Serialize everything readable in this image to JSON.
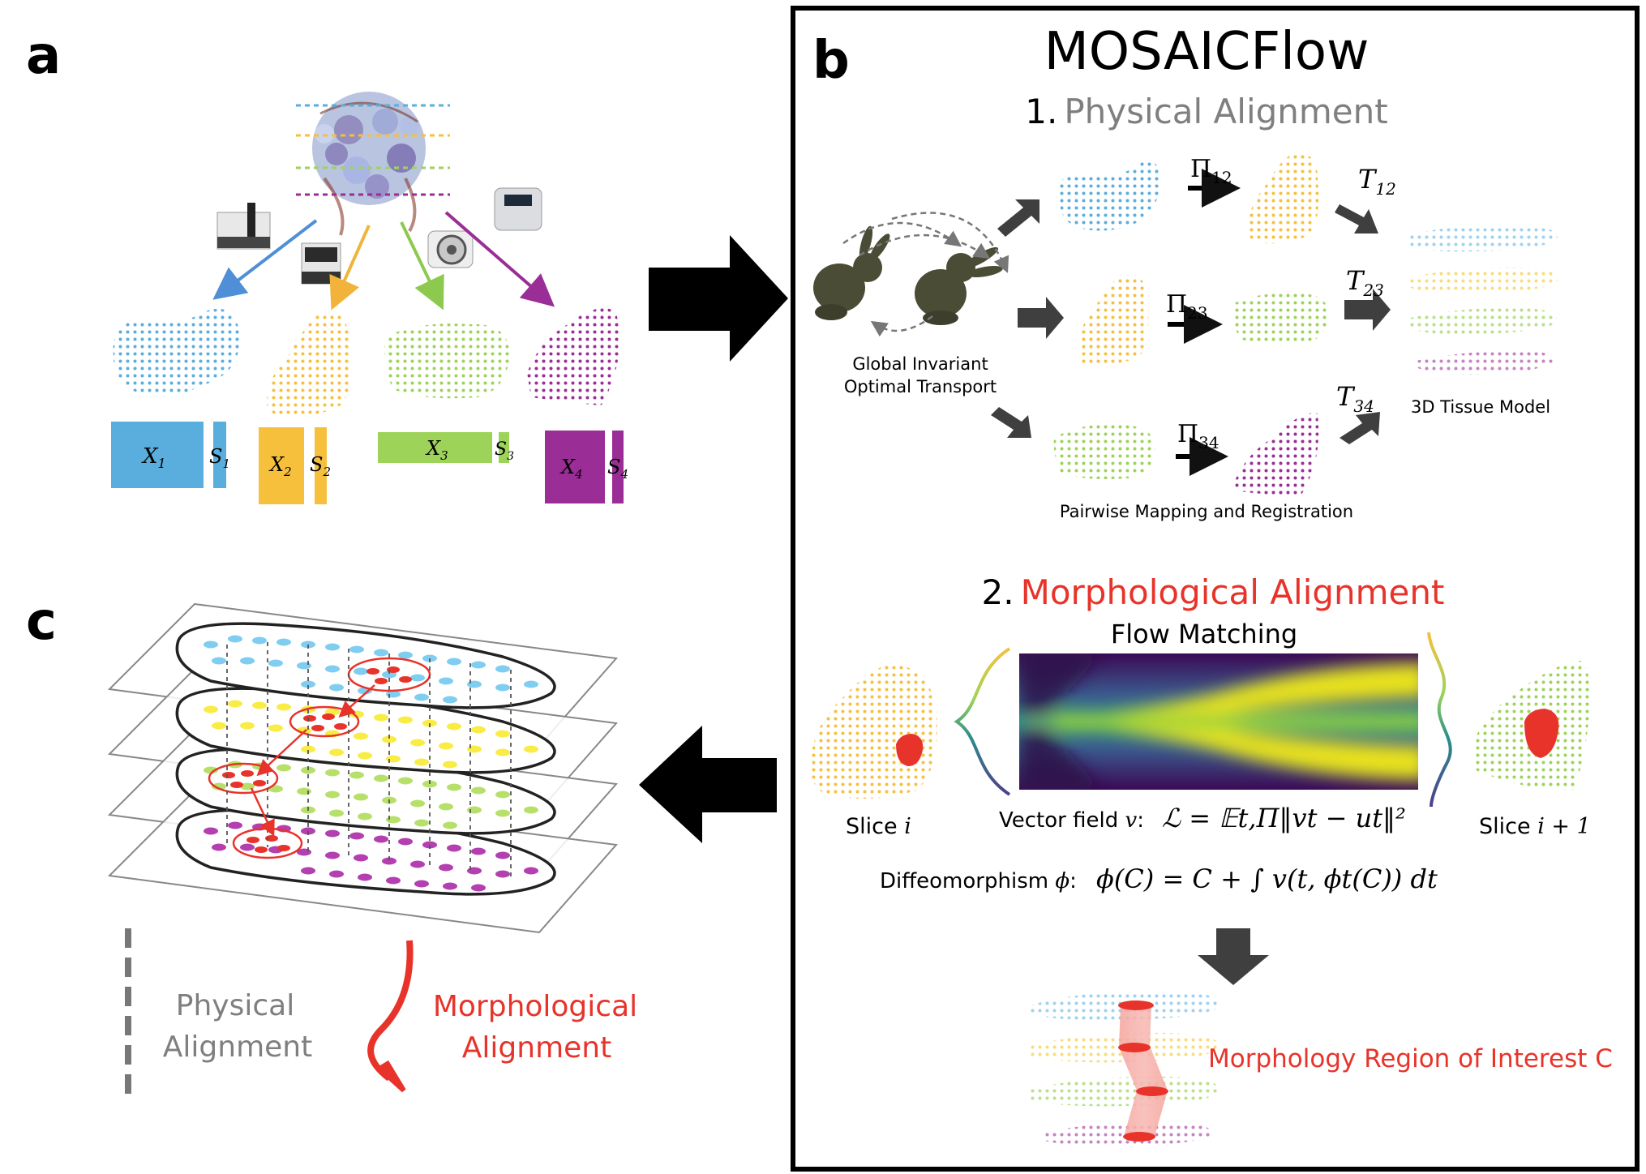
{
  "panels": {
    "a": {
      "label": "a"
    },
    "b": {
      "label": "b"
    },
    "c": {
      "label": "c"
    }
  },
  "panel_a": {
    "matrix_labels": [
      {
        "x": "X",
        "xi": "1",
        "s": "S",
        "si": "1",
        "color": "#5aaede"
      },
      {
        "x": "X",
        "xi": "2",
        "s": "S",
        "si": "2",
        "color": "#f6c03d"
      },
      {
        "x": "X",
        "xi": "3",
        "s": "S",
        "si": "3",
        "color": "#9ed35a"
      },
      {
        "x": "X",
        "xi": "4",
        "s": "S",
        "si": "4",
        "color": "#9a2d96"
      }
    ]
  },
  "panel_b": {
    "title": "MOSAICFlow",
    "step1": {
      "num": "1.",
      "label": "Physical Alignment",
      "color": "#7f7f7f"
    },
    "got_label_1": "Global Invariant",
    "got_label_2": "Optimal Transport",
    "pi": [
      {
        "sym": "Π",
        "sub": "12"
      },
      {
        "sym": "Π",
        "sub": "23"
      },
      {
        "sym": "Π",
        "sub": "34"
      }
    ],
    "t": [
      {
        "sym": "T",
        "sub": "12"
      },
      {
        "sym": "T",
        "sub": "23"
      },
      {
        "sym": "T",
        "sub": "34"
      }
    ],
    "tissue_model_label": "3D Tissue Model",
    "pairwise_label": "Pairwise Mapping and Registration",
    "step2": {
      "num": "2.",
      "label": "Morphological Alignment",
      "color": "#e8332a"
    },
    "flow_matching_label": "Flow Matching",
    "slice_i_label": "Slice ",
    "slice_i_var": "i",
    "slice_i1_label": "Slice ",
    "slice_i1_var": "i + 1",
    "vector_field_label": "Vector field ",
    "vector_field_var": "v",
    "loss_formula": "ℒ = 𝔼t,Π‖vt − ut‖²",
    "diffeo_label": "Diffeomorphism ",
    "diffeo_var": "ϕ",
    "diffeo_formula": "ϕ(C) = C + ∫ v(t, ϕt(C)) dt",
    "roi_label": "Morphology Region of Interest C"
  },
  "panel_c": {
    "legend_physical_1": "Physical",
    "legend_physical_2": "Alignment",
    "legend_morph_1": "Morphological",
    "legend_morph_2": "Alignment"
  },
  "colors": {
    "blue": "#5aaede",
    "yellow": "#f6c03d",
    "green": "#9ed35a",
    "purple": "#9a2d96",
    "red": "#e8332a",
    "gray": "#7f7f7f",
    "arrow_dark": "#404040"
  },
  "icons": [
    "bunny-icon",
    "sequencer-icon",
    "microscope-icon",
    "tumor-icon",
    "instrument-icon"
  ]
}
